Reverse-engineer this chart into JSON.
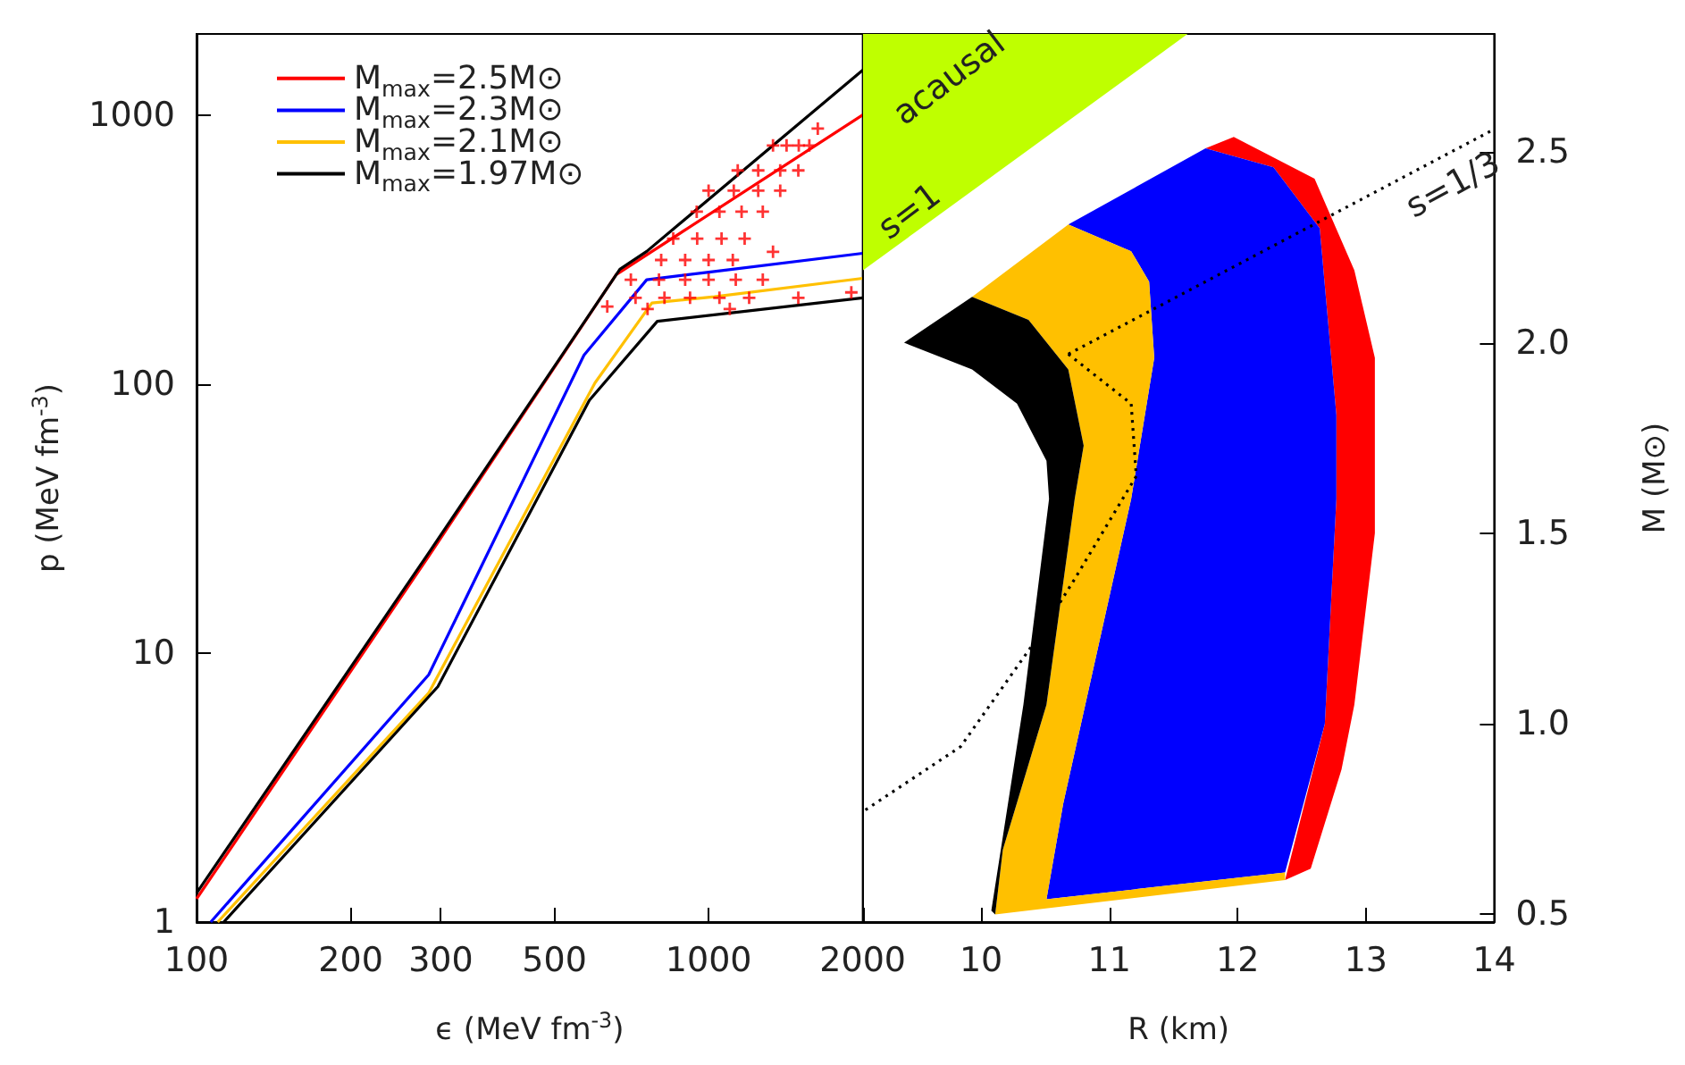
{
  "chart_data": [
    {
      "type": "line",
      "xlabel": "ϵ (MeV fm$^{-3}$)",
      "ylabel": "p (MeV fm$^{-3}$)",
      "log": "xy",
      "xlim": [
        100,
        2000
      ],
      "xticks": [
        100,
        200,
        300,
        500,
        1000,
        2000
      ],
      "ylim": [
        1,
        2000
      ],
      "yticks": [
        1,
        10,
        100,
        1000
      ],
      "legend": "top left",
      "series": [
        {
          "name": "M$_{max}$=2.5M⊙",
          "color": "#ff0000",
          "x": [
            100,
            284,
            660,
            2000
          ],
          "values": [
            1.22,
            22.9,
            255,
            1000
          ]
        },
        {
          "name": "M$_{max}$=2.3M⊙",
          "color": "#0000ff",
          "x": [
            106.6,
            284,
            571,
            757,
            1026,
            2000
          ],
          "values": [
            1,
            8.3,
            128,
            244,
            262,
            306
          ]
        },
        {
          "name": "M$_{max}$=2.1M⊙",
          "color": "#ffc000",
          "x": [
            110,
            284,
            600,
            775,
            1026,
            2000
          ],
          "values": [
            1,
            7.1,
            101,
            200,
            211,
            247
          ]
        },
        {
          "name": "M$_{max}$=1.97M⊙",
          "color": "#000000",
          "x": [
            113,
            296,
            585,
            794,
            2000
          ],
          "values": [
            1,
            7.5,
            87,
            171,
            209
          ]
        },
        {
          "color": "#000000",
          "x": [
            100,
            286,
            671,
            757,
            2000
          ],
          "values": [
            1.28,
            24,
            267,
            311,
            1468
          ]
        },
        {
          "type": "scatter",
          "marker": "cross",
          "color": "#ff0000",
          "x": [
            1336,
            1420,
            1500,
            1573,
            1634,
            1140,
            1250,
            1380,
            1497,
            1000,
            1120,
            1250,
            1380,
            948,
            1050,
            1160,
            1276,
            853,
            950,
            1060,
            1176,
            808,
            900,
            1000,
            1115,
            705,
            800,
            900,
            1000,
            1130,
            1276,
            720,
            820,
            920,
            1050,
            1200,
            1497,
            634,
            1900,
            1336,
            760,
            1100
          ],
          "values": [
            770,
            770,
            770,
            770,
            890,
            622,
            622,
            622,
            622,
            523,
            523,
            523,
            523,
            437,
            437,
            437,
            437,
            347,
            347,
            347,
            347,
            289,
            289,
            289,
            289,
            244,
            244,
            244,
            244,
            244,
            244,
            209,
            209,
            209,
            209,
            209,
            209,
            194,
            219,
            310,
            190,
            190
          ]
        }
      ]
    },
    {
      "type": "area",
      "xlabel": "R (km)",
      "y2label": "M (M⊙)",
      "xlim": [
        9.08,
        14
      ],
      "xticks": [
        10,
        11,
        12,
        13,
        14
      ],
      "y2lim": [
        0.48,
        2.81
      ],
      "y2ticks": [
        0.5,
        {
          "value": 1,
          "label": "1.0"
        },
        1.5,
        {
          "value": 2,
          "label": "2.0"
        },
        2.5
      ],
      "annotations": [
        "acausal",
        "s=1",
        "s=1/3"
      ],
      "series": [
        {
          "axis": "y2",
          "color": "#bfff00",
          "x": [
            9.08,
            11.61,
            9.08
          ],
          "values": [
            2.81,
            2.81,
            2.19
          ]
        },
        {
          "axis": "y2",
          "color": "#ff0000",
          "x": [
            11.75,
            11.97,
            12.6,
            12.91,
            13.07,
            13.07,
            12.91,
            12.81,
            12.57,
            12.37,
            12.68,
            12.77,
            12.77,
            12.64,
            12.28
          ],
          "values": [
            2.51,
            2.54,
            2.43,
            2.19,
            1.96,
            1.5,
            1.05,
            0.88,
            0.62,
            0.59,
            1.0,
            1.59,
            1.81,
            2.3,
            2.46
          ]
        },
        {
          "axis": "y2",
          "color": "#0000ff",
          "x": [
            10.68,
            11.75,
            12.28,
            12.64,
            12.77,
            12.77,
            12.68,
            12.37,
            10.51,
            10.64,
            11.17,
            11.35,
            11.31,
            11.17
          ],
          "values": [
            2.31,
            2.51,
            2.46,
            2.3,
            1.81,
            1.59,
            1.0,
            0.61,
            0.54,
            0.79,
            1.59,
            1.96,
            2.16,
            2.24
          ]
        },
        {
          "axis": "y2",
          "color": "#ffc000",
          "x": [
            9.93,
            10.68,
            11.17,
            11.31,
            11.35,
            11.17,
            10.64,
            10.51,
            12.37,
            12.37,
            10.11,
            10.17,
            10.51,
            10.73,
            10.8,
            10.68,
            10.37
          ],
          "values": [
            2.12,
            2.31,
            2.24,
            2.16,
            1.96,
            1.59,
            0.79,
            0.54,
            0.61,
            0.59,
            0.5,
            0.67,
            1.05,
            1.59,
            1.73,
            1.93,
            2.06
          ]
        },
        {
          "axis": "y2",
          "color": "#000000",
          "x": [
            9.4,
            9.93,
            10.37,
            10.68,
            10.8,
            10.73,
            10.51,
            10.17,
            10.11,
            10.08,
            10.33,
            10.53,
            10.51,
            10.28,
            9.93
          ],
          "values": [
            2.0,
            2.12,
            2.06,
            1.93,
            1.73,
            1.59,
            1.05,
            0.67,
            0.5,
            0.51,
            1.05,
            1.59,
            1.69,
            1.84,
            1.93
          ]
        },
        {
          "axis": "y2",
          "type": "line",
          "line_style": "dotted",
          "color": "#000000",
          "x": [
            10.68,
            14
          ],
          "values": [
            1.97,
            2.56
          ]
        },
        {
          "axis": "y2",
          "type": "line",
          "line_style": "dotted",
          "color": "#000000",
          "x": [
            10.68,
            11.17,
            11.21,
            10.73,
            10.47,
            9.84,
            9.08
          ],
          "values": [
            1.97,
            1.84,
            1.65,
            1.38,
            1.24,
            0.94,
            0.77
          ]
        }
      ]
    }
  ]
}
